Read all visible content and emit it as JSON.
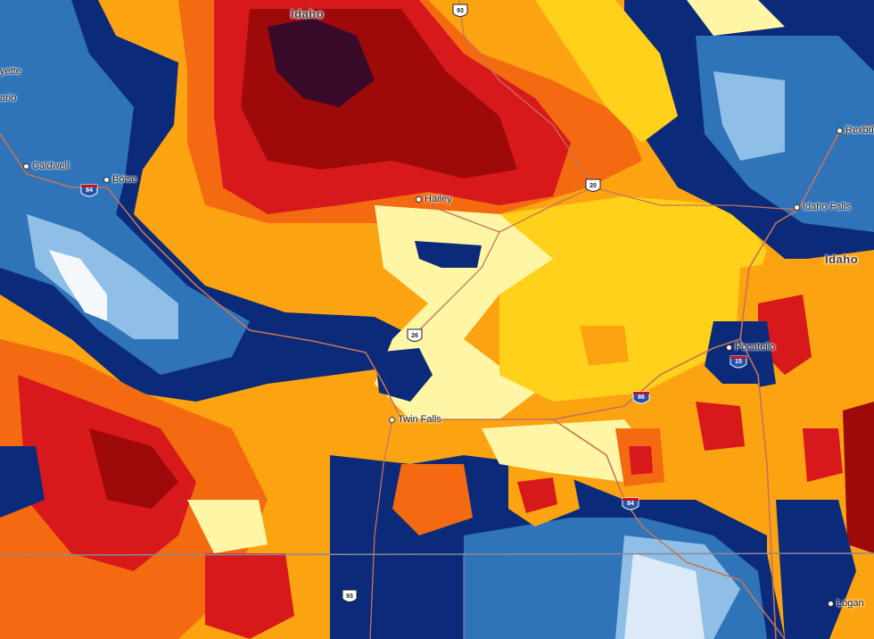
{
  "colors": {
    "dark_navy": "#0b2a7a",
    "mid_blue": "#2f73b8",
    "light_blue": "#8fbfe6",
    "pale_blue": "#dbeaf6",
    "pale_yellow": "#fff6a5",
    "yellow": "#ffd11a",
    "orange": "#fca311",
    "dark_orange": "#f36a10",
    "red": "#d7191c",
    "dark_red": "#9e0a0a",
    "maroon": "#3a0a2a",
    "road": "#c5735a",
    "boundary": "#8a8a9a"
  },
  "labels": {
    "state_idaho_top": "Idaho",
    "state_idaho_right": "Idaho",
    "fayette": "yette",
    "ontario": "ario",
    "caldwell": "Caldwell",
    "boise": "Boise",
    "hailey": "Hailey",
    "rexburg": "Rexbur",
    "idaho_falls": "Idaho Falls",
    "pocatello": "Pocatello",
    "twin_falls": "Twin Falls",
    "logan": "Logan"
  },
  "shields": {
    "i84_west": "84",
    "us20": "20",
    "us26": "26",
    "i86": "86",
    "i15": "15",
    "i84_south": "84",
    "us93_north": "93",
    "us93_south": "93"
  }
}
